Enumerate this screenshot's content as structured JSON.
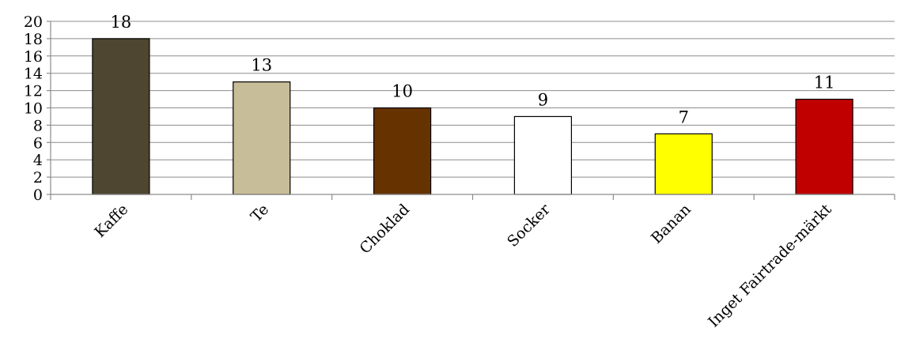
{
  "chart_data": {
    "type": "bar",
    "title": "",
    "xlabel": "",
    "ylabel": "",
    "ylim": [
      0,
      20
    ],
    "y_ticks": [
      "0",
      "2",
      "4",
      "6",
      "8",
      "10",
      "12",
      "14",
      "16",
      "18",
      "20"
    ],
    "grid": true,
    "legend": "none",
    "categories": [
      "Kaffe",
      "Te",
      "Choklad",
      "Socker",
      "Banan",
      "Inget Fairtrade-märkt"
    ],
    "values": [
      18,
      13,
      10,
      9,
      7,
      11
    ],
    "data_labels": [
      "18",
      "13",
      "10",
      "9",
      "7",
      "11"
    ],
    "colors": [
      "#4f4631",
      "#c7bd98",
      "#663300",
      "#ffffff",
      "#ffff00",
      "#c00000"
    ]
  }
}
